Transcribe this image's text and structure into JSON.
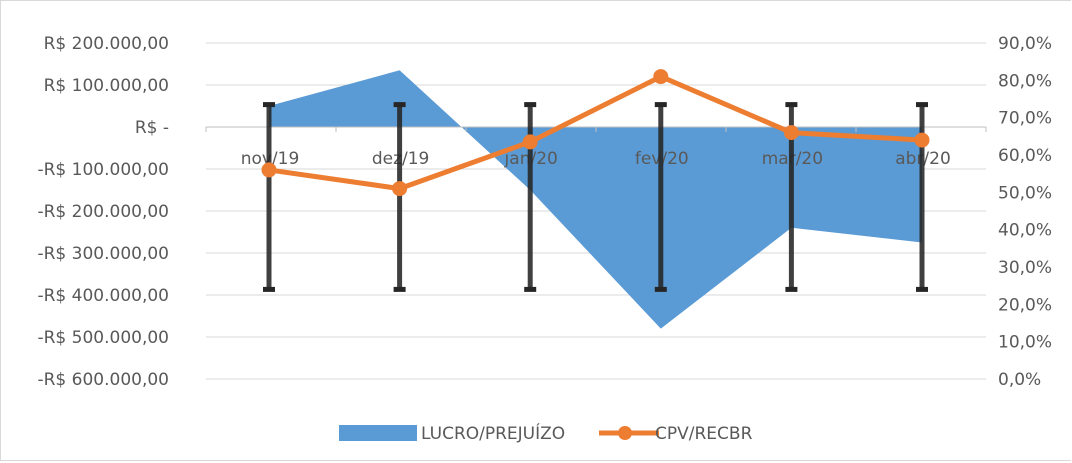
{
  "chart_data": {
    "type": "area",
    "categories": [
      "nov/19",
      "dez/19",
      "jan/20",
      "fev/20",
      "mar/20",
      "abr/20"
    ],
    "series": [
      {
        "name": "LUCRO/PREJUÍZO",
        "type": "area",
        "axis": "left",
        "color": "#5b9bd5",
        "values": [
          50000,
          135000,
          -150000,
          -480000,
          -240000,
          -275000
        ]
      },
      {
        "name": "CPV/RECBR",
        "type": "line",
        "axis": "right",
        "color": "#ed7d31",
        "values": [
          56.0,
          51.0,
          63.5,
          81.0,
          66.0,
          64.0
        ]
      }
    ],
    "error_bars": {
      "series": "CPV/RECBR",
      "color": "#262626",
      "high": [
        73.5,
        73.5,
        73.5,
        73.5,
        73.5,
        73.5
      ],
      "low": [
        24.0,
        24.0,
        24.0,
        24.0,
        24.0,
        24.0
      ]
    },
    "left_axis": {
      "ylim": [
        -600000,
        200000
      ],
      "ticks": [
        200000,
        100000,
        0,
        -100000,
        -200000,
        -300000,
        -400000,
        -500000,
        -600000
      ],
      "tick_labels": [
        "R$ 200.000,00",
        "R$ 100.000,00",
        "R$ -",
        "-R$ 100.000,00",
        "-R$ 200.000,00",
        "-R$ 300.000,00",
        "-R$ 400.000,00",
        "-R$ 500.000,00",
        "-R$ 600.000,00"
      ]
    },
    "right_axis": {
      "ylim": [
        0,
        90
      ],
      "ticks": [
        90,
        80,
        70,
        60,
        50,
        40,
        30,
        20,
        10,
        0
      ],
      "tick_labels": [
        "90,0%",
        "80,0%",
        "70,0%",
        "60,0%",
        "50,0%",
        "40,0%",
        "30,0%",
        "20,0%",
        "10,0%",
        "0,0%"
      ]
    },
    "grid": true,
    "legend_position": "bottom",
    "gridline_color": "#d9d9d9"
  }
}
